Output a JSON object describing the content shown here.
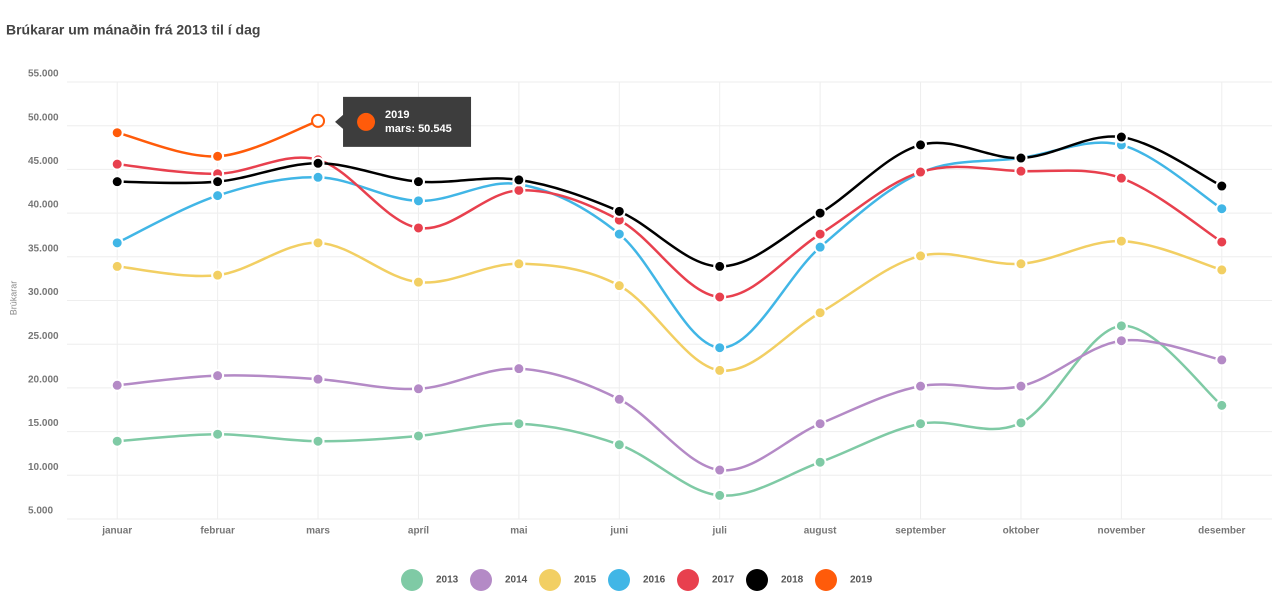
{
  "chart_data": {
    "type": "line",
    "title": "Brúkarar um mánaðin frá 2013 til í dag",
    "y_label": "Brúkarar",
    "categories": [
      "januar",
      "februar",
      "mars",
      "apríl",
      "mai",
      "juni",
      "juli",
      "august",
      "september",
      "oktober",
      "november",
      "desember"
    ],
    "ylim": [
      5000,
      55000
    ],
    "yticks": [
      {
        "value": 5000,
        "label": "5.000"
      },
      {
        "value": 10000,
        "label": "10.000"
      },
      {
        "value": 15000,
        "label": "15.000"
      },
      {
        "value": 20000,
        "label": "20.000"
      },
      {
        "value": 25000,
        "label": "25.000"
      },
      {
        "value": 30000,
        "label": "30.000"
      },
      {
        "value": 35000,
        "label": "35.000"
      },
      {
        "value": 40000,
        "label": "40.000"
      },
      {
        "value": 45000,
        "label": "45.000"
      },
      {
        "value": 50000,
        "label": "50.000"
      },
      {
        "value": 55000,
        "label": "55.000"
      }
    ],
    "grid": true,
    "legend": "bottom",
    "series": [
      {
        "name": "2013",
        "color": "#7fcaa5",
        "values": [
          13900,
          14700,
          13900,
          14500,
          15900,
          13500,
          7700,
          11500,
          15900,
          16000,
          27100,
          18000
        ]
      },
      {
        "name": "2014",
        "color": "#b48ac6",
        "values": [
          20300,
          21400,
          21000,
          19900,
          22200,
          18700,
          10600,
          15900,
          20200,
          20200,
          25400,
          23200
        ]
      },
      {
        "name": "2015",
        "color": "#f2cf63",
        "values": [
          33900,
          32900,
          36600,
          32100,
          34200,
          31700,
          22000,
          28600,
          35100,
          34200,
          36800,
          33500
        ]
      },
      {
        "name": "2016",
        "color": "#41b6e6",
        "values": [
          36600,
          42000,
          44100,
          41400,
          43300,
          37600,
          24600,
          36100,
          44600,
          46300,
          47800,
          40500
        ]
      },
      {
        "name": "2017",
        "color": "#e8404e",
        "values": [
          45600,
          44500,
          46100,
          38300,
          42600,
          39200,
          30400,
          37600,
          44700,
          44800,
          44000,
          36700
        ]
      },
      {
        "name": "2018",
        "color": "#000000",
        "values": [
          43600,
          43600,
          45700,
          43600,
          43800,
          40200,
          33900,
          40000,
          47800,
          46300,
          48700,
          43100
        ]
      },
      {
        "name": "2019",
        "color": "#ff5b0a",
        "values": [
          49200,
          46500,
          50545,
          null,
          null,
          null,
          null,
          null,
          null,
          null,
          null,
          null
        ],
        "value_labels": [
          null,
          null,
          "50.545",
          null,
          null,
          null,
          null,
          null,
          null,
          null,
          null,
          null
        ]
      }
    ]
  }
}
